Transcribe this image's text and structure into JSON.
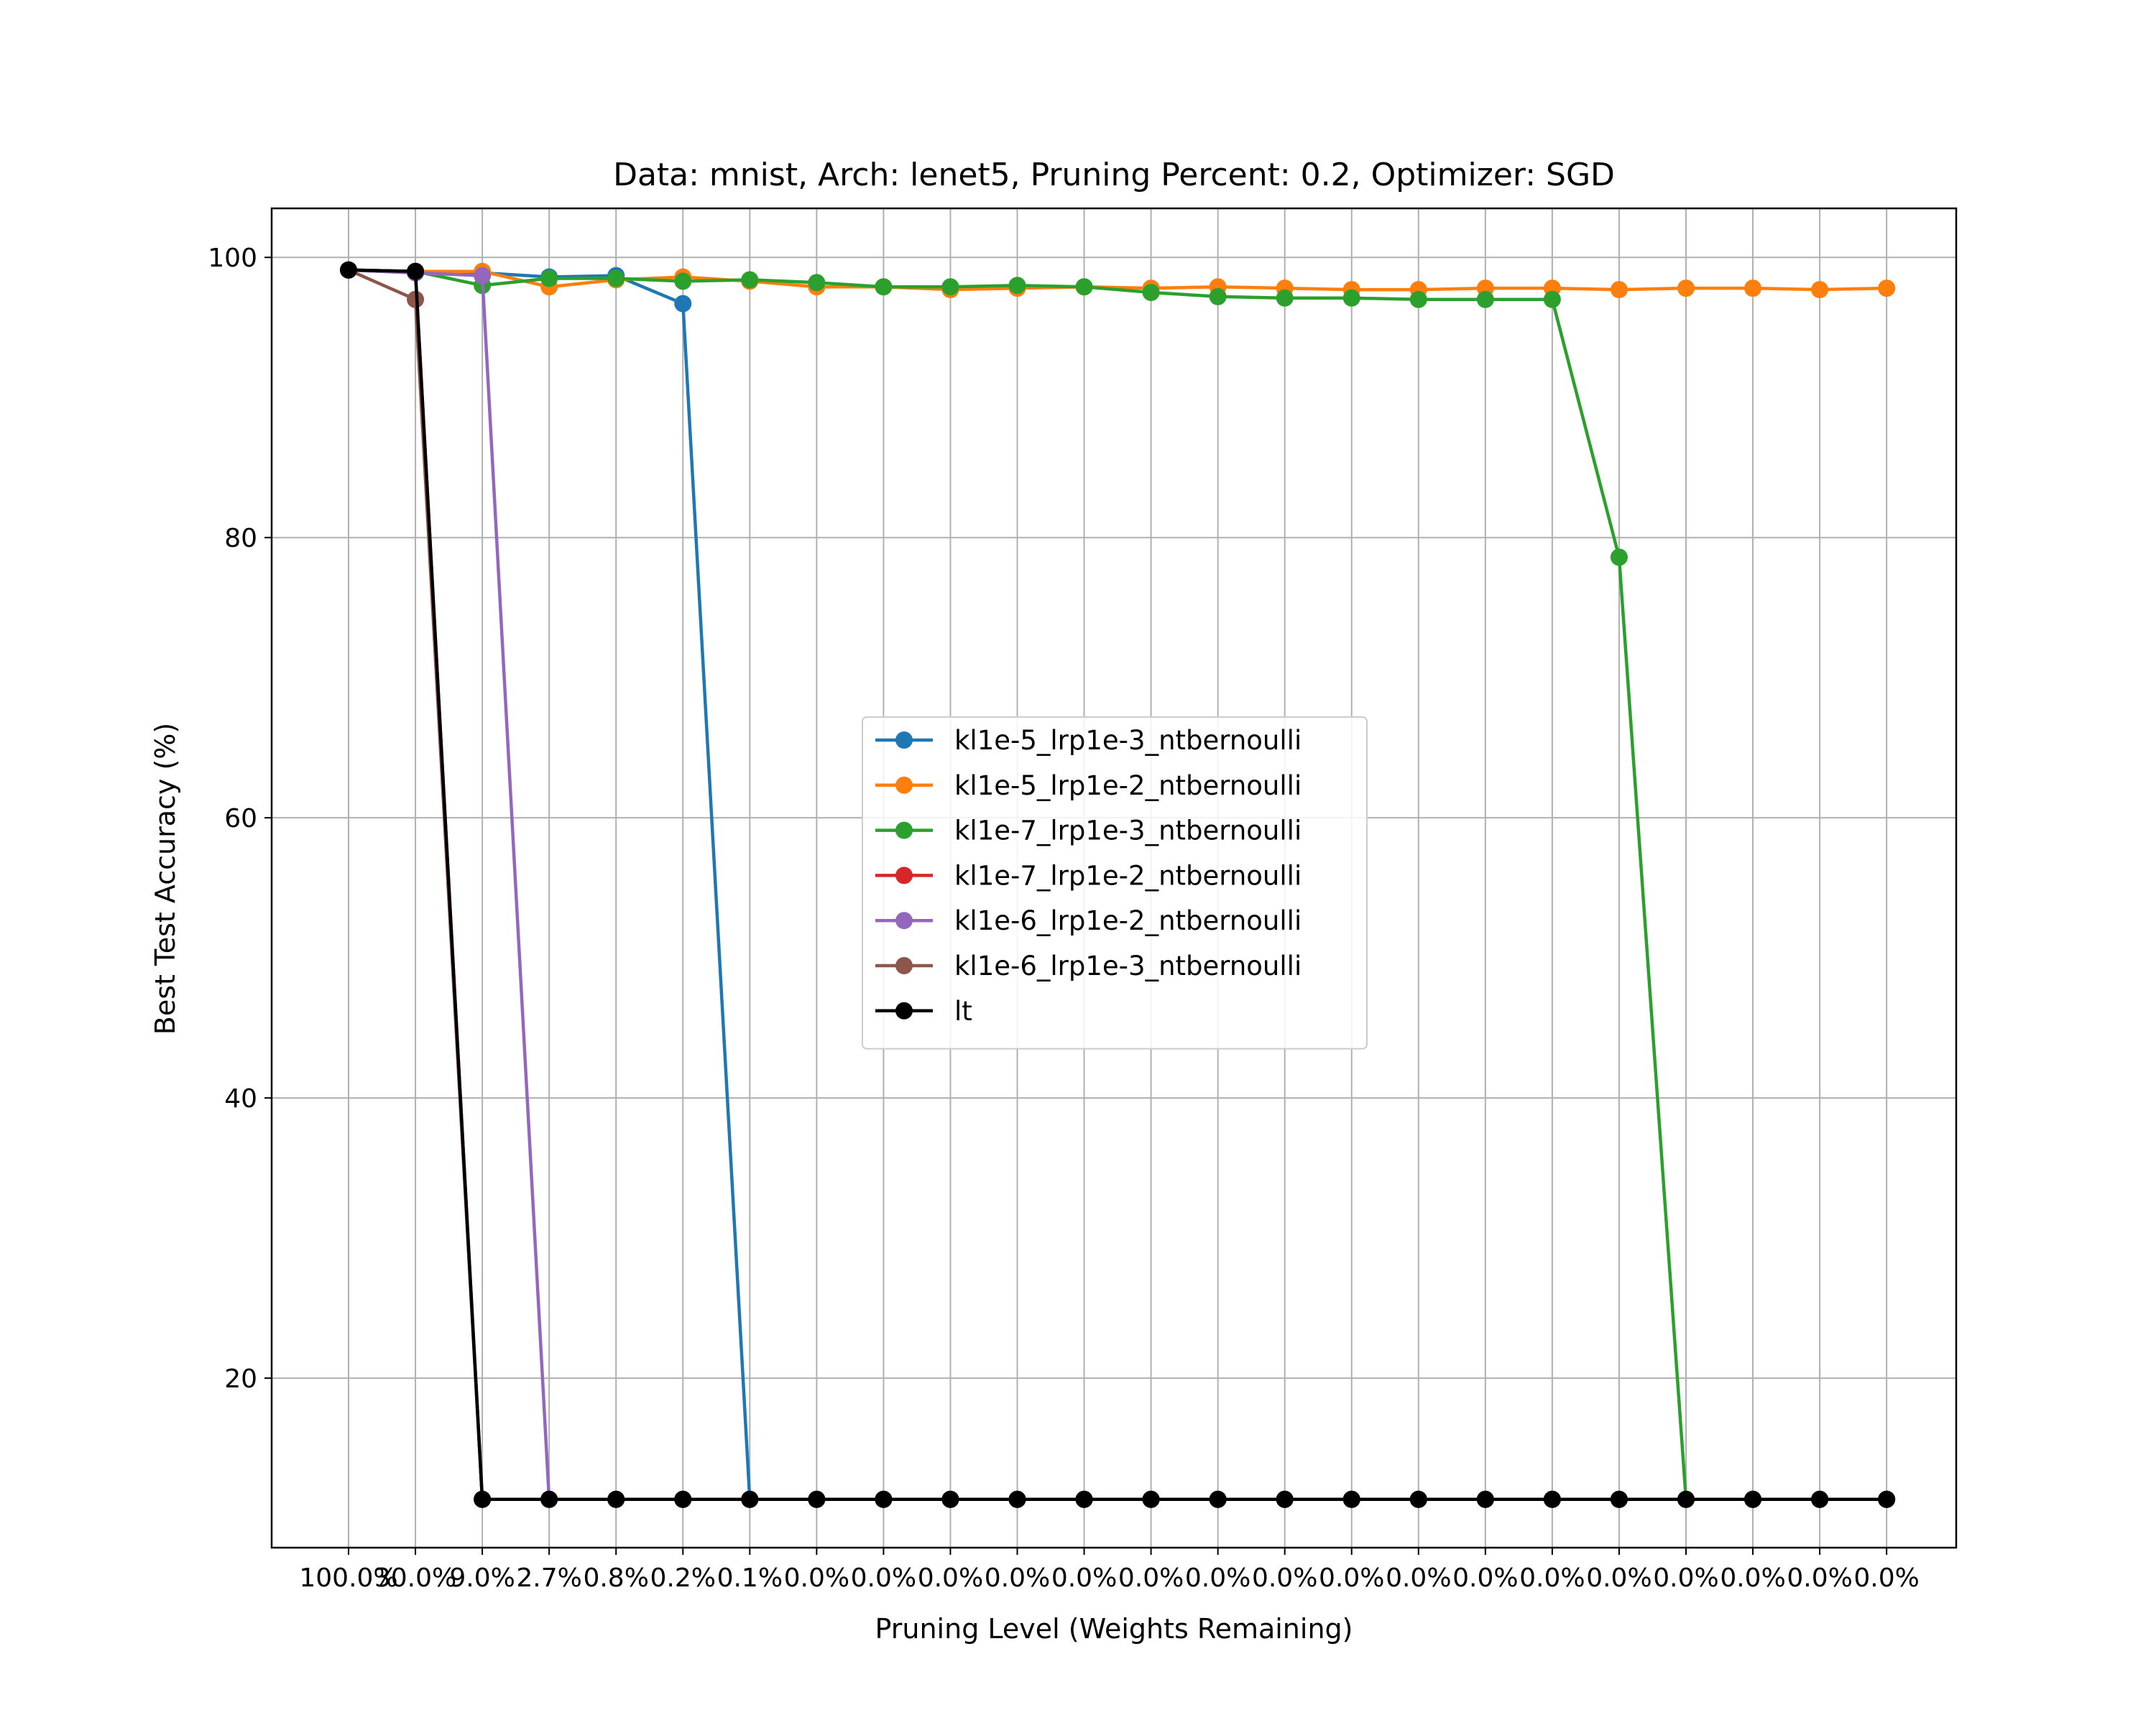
{
  "chart_data": {
    "type": "line",
    "title": "Data: mnist, Arch: lenet5, Pruning Percent: 0.2, Optimizer: SGD",
    "xlabel": "Pruning Level (Weights Remaining)",
    "ylabel": "Best Test Accuracy (%)",
    "categories": [
      "100.0%",
      "30.0%",
      "9.0%",
      "2.7%",
      "0.8%",
      "0.2%",
      "0.1%",
      "0.0%",
      "0.0%",
      "0.0%",
      "0.0%",
      "0.0%",
      "0.0%",
      "0.0%",
      "0.0%",
      "0.0%",
      "0.0%",
      "0.0%",
      "0.0%",
      "0.0%",
      "0.0%",
      "0.0%",
      "0.0%",
      "0.0%"
    ],
    "yticks": [
      "20",
      "40",
      "60",
      "80",
      "100"
    ],
    "ylim": [
      7.9,
      103.5
    ],
    "grid": true,
    "legend_position": "center",
    "series": [
      {
        "name": "kl1e-5_lrp1e-3_ntbernoulli",
        "color": "#1f77b4",
        "values": [
          99.1,
          98.9,
          98.9,
          98.6,
          98.7,
          96.7,
          11.35,
          11.35,
          11.35,
          11.35,
          11.35,
          11.35,
          11.35,
          11.35,
          11.35,
          11.35,
          11.35,
          11.35,
          11.35,
          11.35,
          11.35,
          11.35,
          11.35,
          11.35
        ]
      },
      {
        "name": "kl1e-5_lrp1e-2_ntbernoulli",
        "color": "#ff7f0e",
        "values": [
          99.1,
          99.0,
          99.0,
          97.9,
          98.4,
          98.6,
          98.3,
          97.9,
          97.9,
          97.7,
          97.8,
          97.9,
          97.8,
          97.9,
          97.8,
          97.7,
          97.7,
          97.8,
          97.8,
          97.7,
          97.8,
          97.8,
          97.7,
          97.8
        ]
      },
      {
        "name": "kl1e-7_lrp1e-3_ntbernoulli",
        "color": "#2ca02c",
        "values": [
          99.1,
          99.0,
          98.0,
          98.5,
          98.5,
          98.3,
          98.4,
          98.2,
          97.9,
          97.9,
          98.0,
          97.9,
          97.5,
          97.2,
          97.1,
          97.1,
          97.0,
          97.0,
          97.0,
          78.6,
          11.35,
          11.35,
          11.35,
          11.35
        ]
      },
      {
        "name": "kl1e-7_lrp1e-2_ntbernoulli",
        "color": "#d62728",
        "values": [
          99.1,
          99.0,
          11.35,
          11.35,
          11.35,
          11.35,
          11.35,
          11.35,
          11.35,
          11.35,
          11.35,
          11.35,
          11.35,
          11.35,
          11.35,
          11.35,
          11.35,
          11.35,
          11.35,
          11.35,
          11.35,
          11.35,
          11.35,
          11.35
        ]
      },
      {
        "name": "kl1e-6_lrp1e-2_ntbernoulli",
        "color": "#9467bd",
        "values": [
          99.1,
          98.9,
          98.7,
          11.35,
          11.35,
          11.35,
          11.35,
          11.35,
          11.35,
          11.35,
          11.35,
          11.35,
          11.35,
          11.35,
          11.35,
          11.35,
          11.35,
          11.35,
          11.35,
          11.35,
          11.35,
          11.35,
          11.35,
          11.35
        ]
      },
      {
        "name": "kl1e-6_lrp1e-3_ntbernoulli",
        "color": "#8c564b",
        "values": [
          99.1,
          97.0,
          11.35,
          11.35,
          11.35,
          11.35,
          11.35,
          11.35,
          11.35,
          11.35,
          11.35,
          11.35,
          11.35,
          11.35,
          11.35,
          11.35,
          11.35,
          11.35,
          11.35,
          11.35,
          11.35,
          11.35,
          11.35,
          11.35
        ]
      },
      {
        "name": "lt",
        "color": "#000000",
        "values": [
          99.1,
          99.0,
          11.35,
          11.35,
          11.35,
          11.35,
          11.35,
          11.35,
          11.35,
          11.35,
          11.35,
          11.35,
          11.35,
          11.35,
          11.35,
          11.35,
          11.35,
          11.35,
          11.35,
          11.35,
          11.35,
          11.35,
          11.35,
          11.35
        ]
      }
    ]
  }
}
